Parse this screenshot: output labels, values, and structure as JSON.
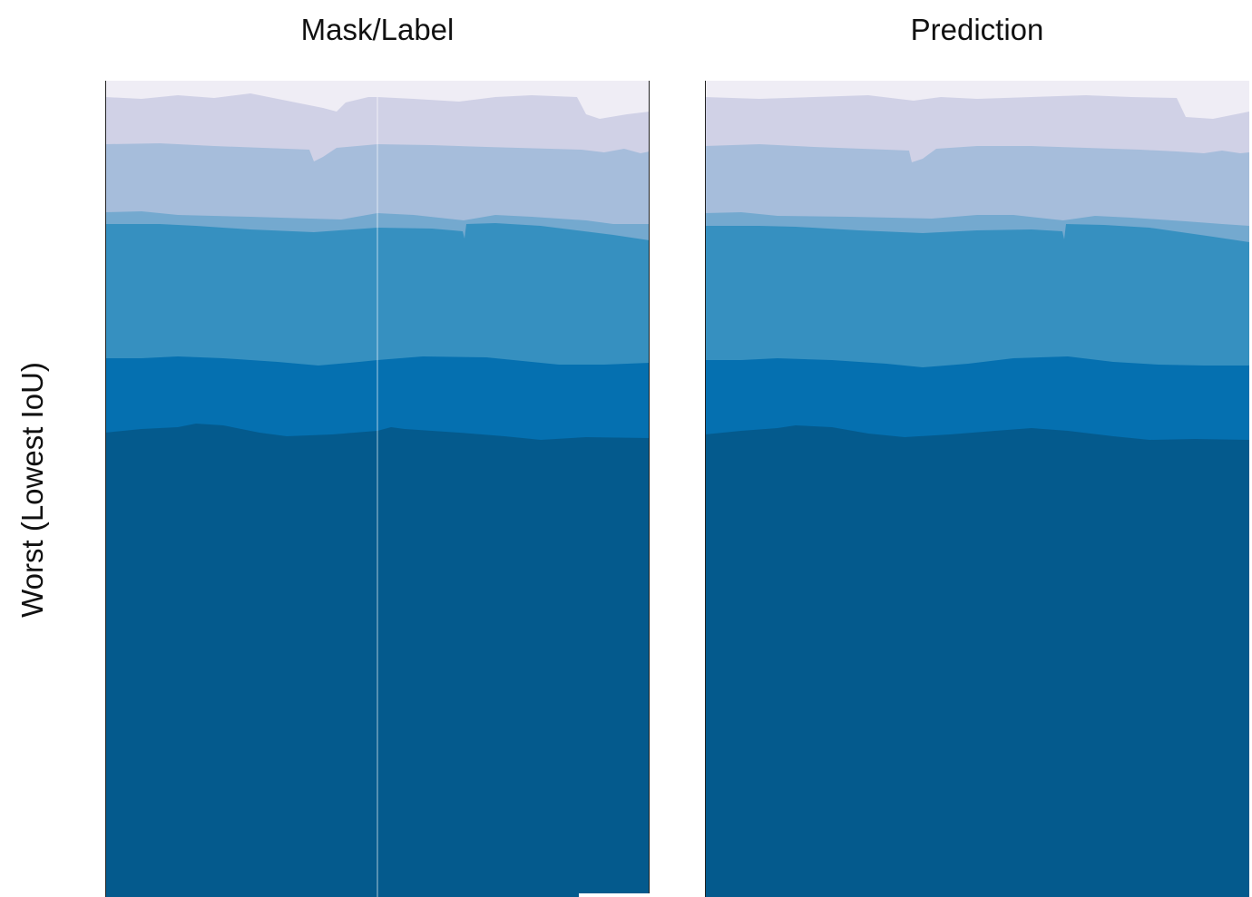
{
  "columns": {
    "left_title": "Mask/Label",
    "right_title": "Prediction"
  },
  "row_label": "Worst (Lowest IoU)",
  "layer_colors": [
    "#efedf5",
    "#d0d1e6",
    "#a6bddb",
    "#74a9cf",
    "#3690c0",
    "#0570b0",
    "#045a8d"
  ]
}
